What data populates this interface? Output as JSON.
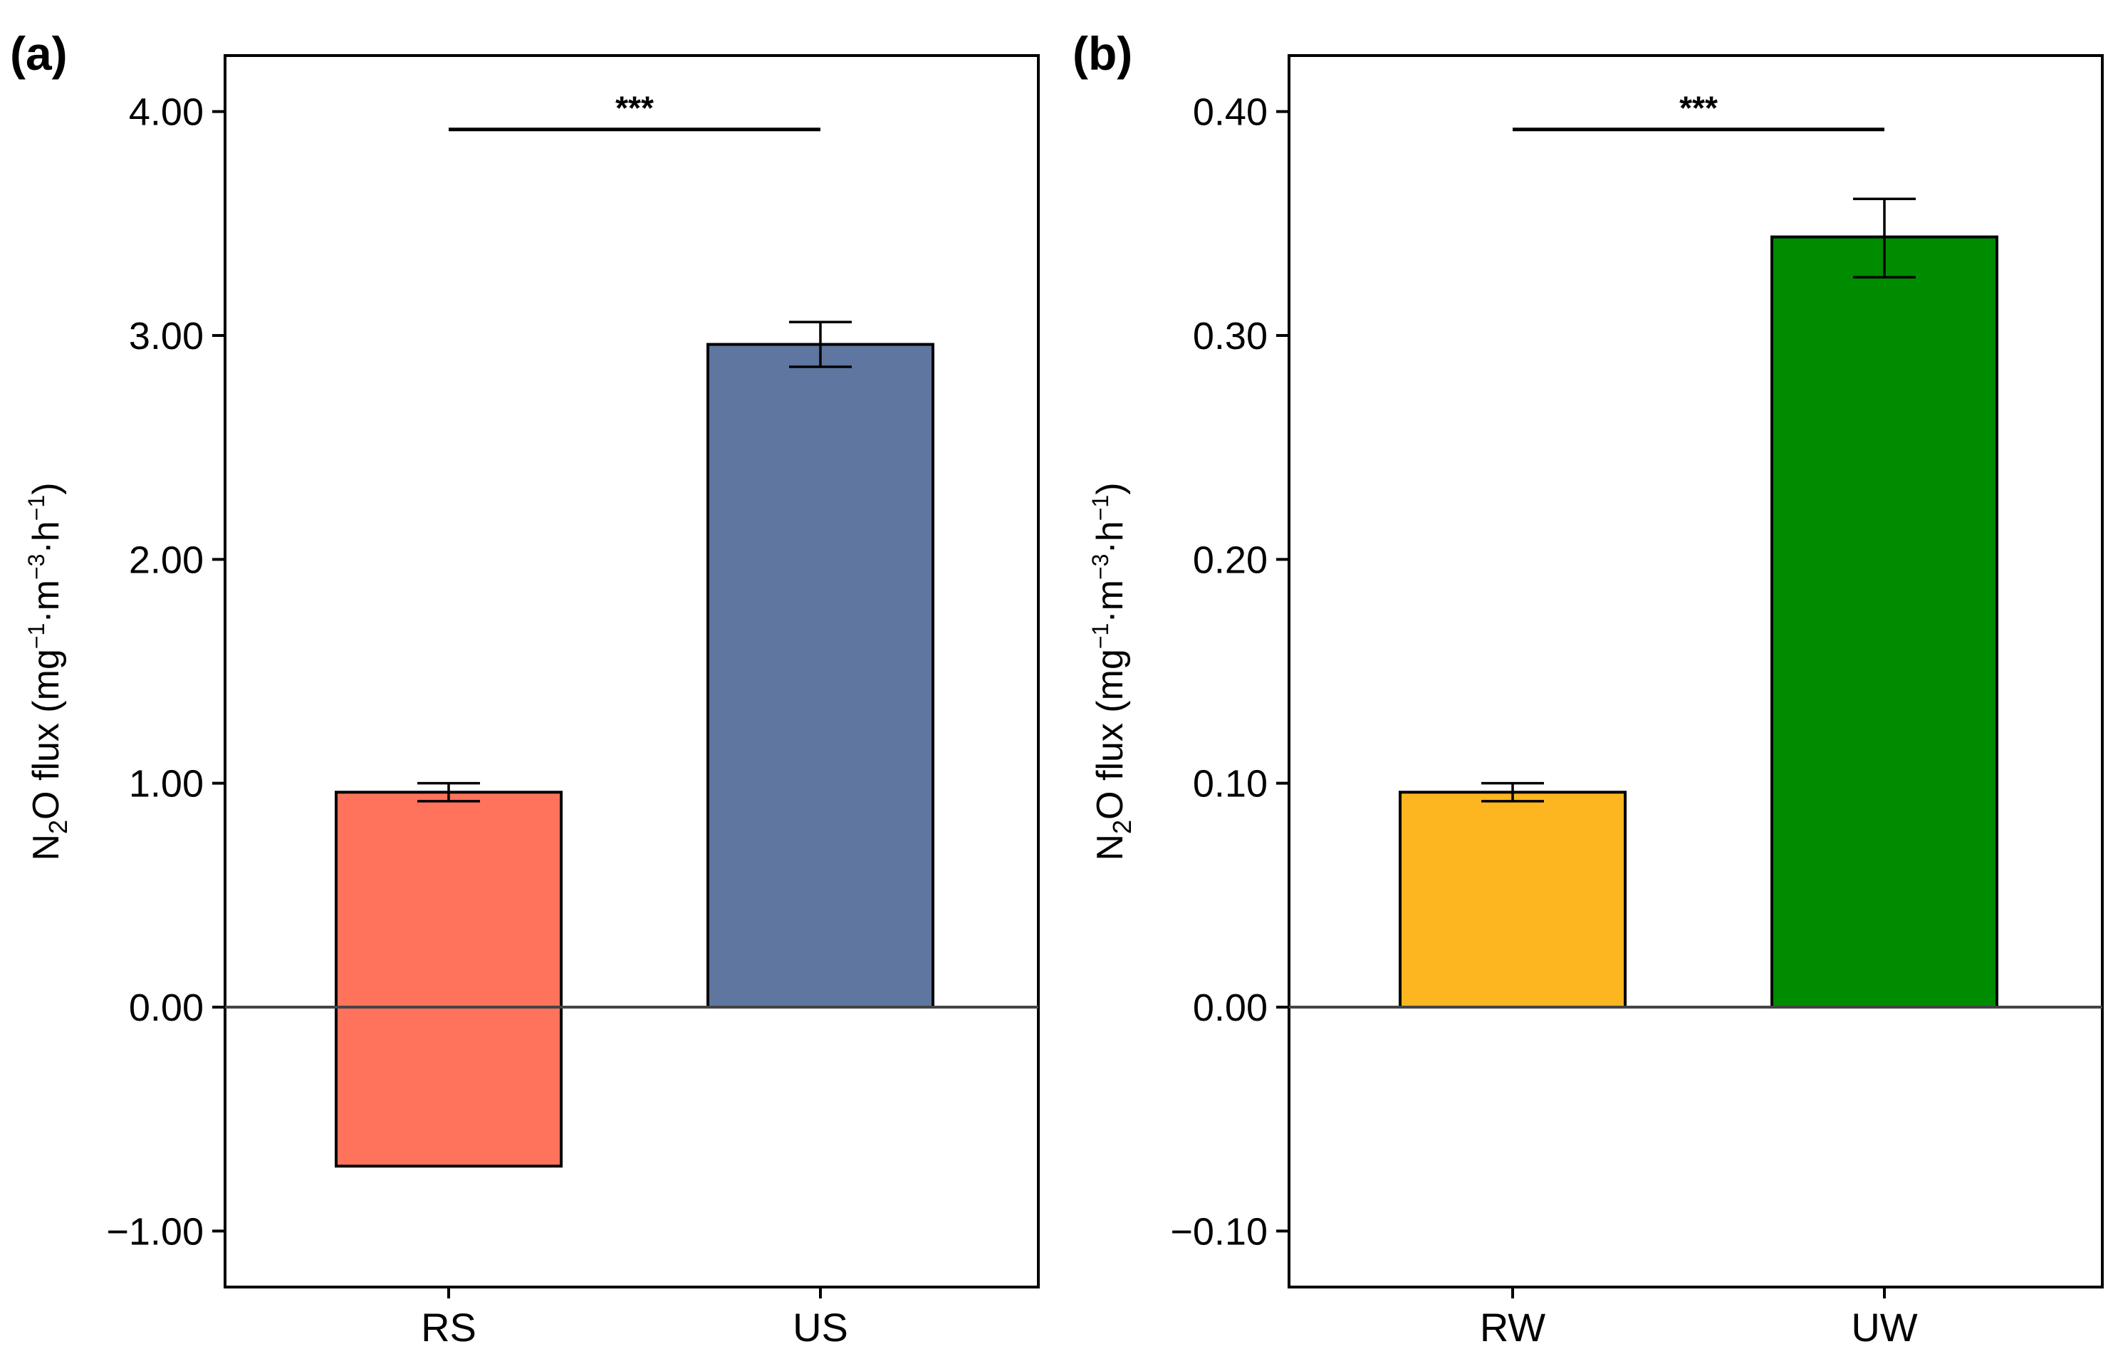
{
  "chart_data": [
    {
      "panel": "(a)",
      "type": "bar",
      "categories": [
        "RS",
        "US"
      ],
      "values": [
        -0.71,
        2.96
      ],
      "stacked_values": [
        [
          -0.71,
          0.96
        ],
        [
          0,
          2.96
        ]
      ],
      "error_bar_top": [
        1.0,
        3.06
      ],
      "error_bar_bottom": [
        0.92,
        2.86
      ],
      "colors": [
        "#FF725C",
        "#5E76A0"
      ],
      "ylabel": "N2O flux (mg⁻¹·m⁻³·h⁻¹)",
      "ylabel_main": "N",
      "ylabel_sub": "2",
      "ylabel_rest": "O flux (mg",
      "ylabel_sup1": "−1",
      "ylabel_mid1": "·m",
      "ylabel_sup2": "−3",
      "ylabel_mid2": "·h",
      "ylabel_sup3": "−1",
      "ylabel_end": ")",
      "ylim": [
        -1.25,
        4.25
      ],
      "yticks": [
        -1.0,
        0.0,
        1.0,
        2.0,
        3.0,
        4.0
      ],
      "ytick_labels": [
        "−1.00",
        "0.00",
        "1.00",
        "2.00",
        "3.00",
        "4.00"
      ],
      "significance": {
        "from": "RS",
        "to": "US",
        "label": "***",
        "y": 3.92
      },
      "grid": false
    },
    {
      "panel": "(b)",
      "type": "bar",
      "categories": [
        "RW",
        "UW"
      ],
      "values": [
        0.096,
        0.344
      ],
      "error_bar_top": [
        0.1,
        0.361
      ],
      "error_bar_bottom": [
        0.092,
        0.326
      ],
      "colors": [
        "#FDB620",
        "#008C00"
      ],
      "ylabel": "N2O flux  (mg⁻¹·m⁻³·h⁻¹)",
      "ylabel_main": "N",
      "ylabel_sub": "2",
      "ylabel_rest": "O flux  (mg",
      "ylabel_sup1": "−1",
      "ylabel_mid1": "·m",
      "ylabel_sup2": "−3",
      "ylabel_mid2": "·h",
      "ylabel_sup3": "−1",
      "ylabel_end": ")",
      "ylim": [
        -0.125,
        0.425
      ],
      "yticks": [
        -0.1,
        0.0,
        0.1,
        0.2,
        0.3,
        0.4
      ],
      "ytick_labels": [
        "−0.10",
        "0.00",
        "0.10",
        "0.20",
        "0.30",
        "0.40"
      ],
      "significance": {
        "from": "RW",
        "to": "UW",
        "label": "***",
        "y": 0.392
      },
      "grid": false
    }
  ]
}
